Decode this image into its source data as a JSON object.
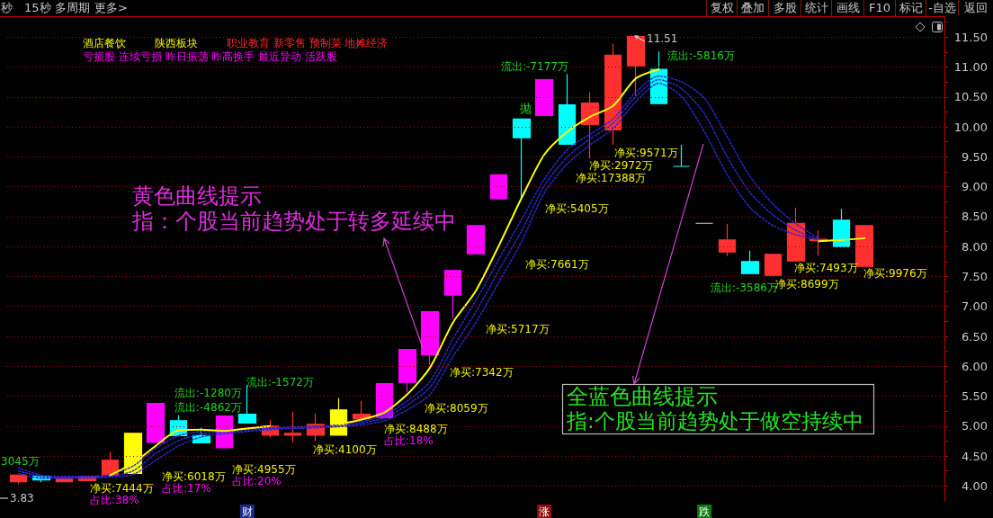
{
  "chart_data": {
    "type": "candlestick",
    "categories": [
      null,
      null,
      null,
      null,
      null,
      null,
      null,
      null,
      null,
      null,
      "财",
      null,
      null,
      null,
      null,
      null,
      null,
      null,
      null,
      null,
      null,
      null,
      null,
      "涨",
      null,
      null,
      null,
      null,
      null,
      null,
      "跌",
      null,
      null,
      null,
      null,
      null,
      null,
      null,
      null,
      null,
      null
    ],
    "ohlc": [
      [
        4.07,
        4.18,
        4.03,
        4.18
      ],
      [
        4.16,
        4.16,
        4.06,
        4.1
      ],
      [
        4.07,
        4.12,
        4.07,
        4.12
      ],
      [
        4.09,
        4.16,
        4.09,
        4.16
      ],
      [
        4.18,
        4.57,
        4.18,
        4.43
      ],
      [
        4.21,
        4.88,
        4.21,
        4.88
      ],
      [
        4.73,
        5.38,
        4.73,
        5.38
      ],
      [
        5.09,
        5.18,
        4.84,
        4.84
      ],
      [
        4.84,
        4.97,
        4.72,
        4.72
      ],
      [
        4.64,
        5.17,
        4.64,
        5.17
      ],
      [
        5.2,
        5.68,
        5.05,
        5.05
      ],
      [
        4.85,
        5.11,
        4.81,
        5.0
      ],
      [
        4.85,
        5.24,
        4.73,
        4.88
      ],
      [
        4.85,
        5.21,
        4.75,
        5.03
      ],
      [
        4.85,
        5.47,
        4.85,
        5.27
      ],
      [
        5.12,
        5.42,
        5.12,
        5.2
      ],
      [
        5.14,
        5.71,
        5.14,
        5.71
      ],
      [
        5.73,
        6.28,
        5.57,
        6.28
      ],
      [
        6.19,
        6.91,
        6.02,
        6.91
      ],
      [
        7.19,
        7.6,
        6.8,
        7.6
      ],
      [
        7.88,
        8.35,
        7.88,
        8.35
      ],
      [
        8.8,
        9.2,
        8.8,
        9.2
      ],
      [
        10.13,
        10.13,
        8.8,
        9.82
      ],
      [
        10.19,
        10.79,
        10.19,
        10.79
      ],
      [
        10.37,
        10.88,
        9.71,
        9.71
      ],
      [
        10.04,
        10.58,
        9.47,
        10.4
      ],
      [
        9.95,
        11.39,
        9.7,
        11.2
      ],
      [
        11.02,
        11.51,
        10.52,
        11.51
      ],
      [
        10.96,
        11.26,
        10.39,
        10.39
      ],
      [
        9.34,
        9.7,
        9.34,
        9.34
      ],
      [
        8.39,
        8.39,
        8.39,
        8.39
      ],
      [
        7.91,
        8.38,
        7.84,
        8.11
      ],
      [
        7.75,
        7.93,
        7.55,
        7.55
      ],
      [
        7.52,
        7.87,
        7.52,
        7.87
      ],
      [
        7.76,
        8.65,
        7.76,
        8.39
      ],
      [
        8.1,
        8.27,
        7.85,
        8.12
      ],
      [
        8.44,
        8.63,
        8.0,
        8.0
      ],
      [
        7.67,
        8.35,
        7.67,
        8.35
      ],
      null,
      null,
      null
    ],
    "colors": [
      "#ff3030",
      "#00ffff",
      "#ff3030",
      "#ff3030",
      "#ff3030",
      "#ffff00",
      "#ff00ff",
      "#00ffff",
      "#00ffff",
      "#ff00ff",
      "#00ffff",
      "#ff3030",
      "#ff3030",
      "#ff3030",
      "#ffff00",
      "#ff3030",
      "#ff00ff",
      "#ff00ff",
      "#ff00ff",
      "#ff00ff",
      "#ff00ff",
      "#ff00ff",
      "#00ffff",
      "#ff00ff",
      "#00ffff",
      "#ff3030",
      "#ff3030",
      "#ff3030",
      "#00ffff",
      "#00ffff",
      "#d0d0d0",
      "#ff3030",
      "#00ffff",
      "#ff3030",
      "#ff3030",
      "#ff3030",
      "#00ffff",
      "#ff3030",
      null,
      null,
      null
    ],
    "series": [
      {
        "type": "line",
        "color": "#2a2ad8",
        "line_style": "dotted",
        "values": [
          4.3,
          4.18,
          4.16,
          4.16,
          4.19,
          4.33,
          4.63,
          4.84,
          4.91,
          4.93,
          4.96,
          4.97,
          4.99,
          5.0,
          5.02,
          5.08,
          5.18,
          5.42,
          5.75,
          6.46,
          7.1,
          7.78,
          8.45,
          9.13,
          9.62,
          9.88,
          10.13,
          10.58,
          10.85,
          10.75,
          10.48,
          9.83,
          9.17,
          8.71,
          8.38,
          8.14,
          null,
          null,
          null,
          null,
          null
        ]
      },
      {
        "type": "line",
        "color": "#2a2ad8",
        "line_style": "dotted",
        "values": [
          4.25,
          4.16,
          4.15,
          4.15,
          4.16,
          4.25,
          4.54,
          4.76,
          4.87,
          4.9,
          4.93,
          4.96,
          4.97,
          4.99,
          5.0,
          5.05,
          5.14,
          5.35,
          5.65,
          6.31,
          6.91,
          7.6,
          8.26,
          9.02,
          9.5,
          9.8,
          10.06,
          10.51,
          10.79,
          10.64,
          10.22,
          9.5,
          8.9,
          8.53,
          8.27,
          8.12,
          null,
          null,
          null,
          null,
          null
        ]
      },
      {
        "type": "line",
        "color": "#2a2ad8",
        "line_style": "dotted",
        "values": [
          4.21,
          4.13,
          4.13,
          4.13,
          4.15,
          4.19,
          4.43,
          4.67,
          4.82,
          4.87,
          4.91,
          4.94,
          4.96,
          4.97,
          4.99,
          5.02,
          5.09,
          5.27,
          5.53,
          6.16,
          6.73,
          7.4,
          8.08,
          8.9,
          9.38,
          9.7,
          9.97,
          10.42,
          10.73,
          10.51,
          9.92,
          9.2,
          8.65,
          8.35,
          8.2,
          8.11,
          null,
          null,
          null,
          null,
          null
        ]
      },
      {
        "type": "line",
        "color": "#ffff00",
        "line_style": "solid",
        "values": [
          null,
          null,
          null,
          null,
          4.18,
          4.38,
          4.67,
          4.93,
          4.94,
          4.92,
          4.96,
          5.0,
          null,
          null,
          5.03,
          5.11,
          5.23,
          5.53,
          5.98,
          6.73,
          7.26,
          8.01,
          8.81,
          9.54,
          9.92,
          10.17,
          10.35,
          10.81,
          10.96,
          null,
          null,
          null,
          null,
          null,
          null,
          8.09,
          8.11,
          8.14,
          null,
          null,
          null
        ]
      }
    ],
    "ylim": [
      3.75,
      11.85
    ],
    "yticks": [
      {
        "value": 4,
        "label": "4.00"
      },
      {
        "value": 4.25,
        "label": null
      },
      {
        "value": 4.5,
        "label": "4.50"
      },
      {
        "value": 4.75,
        "label": null
      },
      {
        "value": 5,
        "label": "5.00"
      },
      {
        "value": 5.25,
        "label": null
      },
      {
        "value": 5.5,
        "label": "5.50"
      },
      {
        "value": 5.75,
        "label": null
      },
      {
        "value": 6,
        "label": "6.00"
      },
      {
        "value": 6.25,
        "label": null
      },
      {
        "value": 6.5,
        "label": "6.50"
      },
      {
        "value": 6.75,
        "label": null
      },
      {
        "value": 7,
        "label": "7.00"
      },
      {
        "value": 7.25,
        "label": null
      },
      {
        "value": 7.5,
        "label": "7.50"
      },
      {
        "value": 7.75,
        "label": null
      },
      {
        "value": 8,
        "label": "8.00"
      },
      {
        "value": 8.25,
        "label": null
      },
      {
        "value": 8.5,
        "label": "8.50"
      },
      {
        "value": 8.75,
        "label": null
      },
      {
        "value": 9,
        "label": "9.00"
      },
      {
        "value": 9.25,
        "label": null
      },
      {
        "value": 9.5,
        "label": "9.50"
      },
      {
        "value": 9.75,
        "label": null
      },
      {
        "value": 10,
        "label": "10.00"
      },
      {
        "value": 10.25,
        "label": null
      },
      {
        "value": 10.5,
        "label": "10.50"
      },
      {
        "value": 10.75,
        "label": null
      },
      {
        "value": 11,
        "label": "11.00"
      },
      {
        "value": 11.25,
        "label": null
      },
      {
        "value": 11.5,
        "label": "11.50"
      },
      {
        "value": 11.75,
        "label": null
      }
    ],
    "grid": "y",
    "annotations": [
      "秒",
      "15秒",
      "多周期",
      "更多>",
      "复权",
      "叠加",
      "多股",
      "统计",
      "画线",
      "F10",
      "标记",
      "-自选",
      "返回",
      "酒店餐饮",
      "陕西板块",
      "职业教育 新零售 预制菜 地摊经济",
      "亏损股 连续亏损 昨日振荡 昨高换手 最近异动 活跃股",
      "黄色曲线提示",
      "指：个股当前趋势处于转多延续中",
      "全蓝色曲线提示",
      "指:个股当前趋势处于做空持续中",
      "3045万",
      "3.83",
      "净买:7444万",
      "占比:38%",
      "流出:-4862万",
      "流出:-1280万",
      "净买:6018万",
      "占比:17%",
      "流出:-1572万",
      "净买:4955万",
      "占比:20%",
      "净买:4100万",
      "净买:8488万",
      "占比:18%",
      "净买:8059万",
      "净买:7342万",
      "净买:5717万",
      "净买:7661万",
      "净买:5405万",
      "抛",
      "净买:17388万",
      "流出:-7177万",
      "净买:2972万",
      "净买:9571万",
      "11.51",
      "流出:-5816万",
      "流出:-3586万",
      "净买:8699万",
      "净买:7493万",
      "净买:9976万"
    ]
  }
}
